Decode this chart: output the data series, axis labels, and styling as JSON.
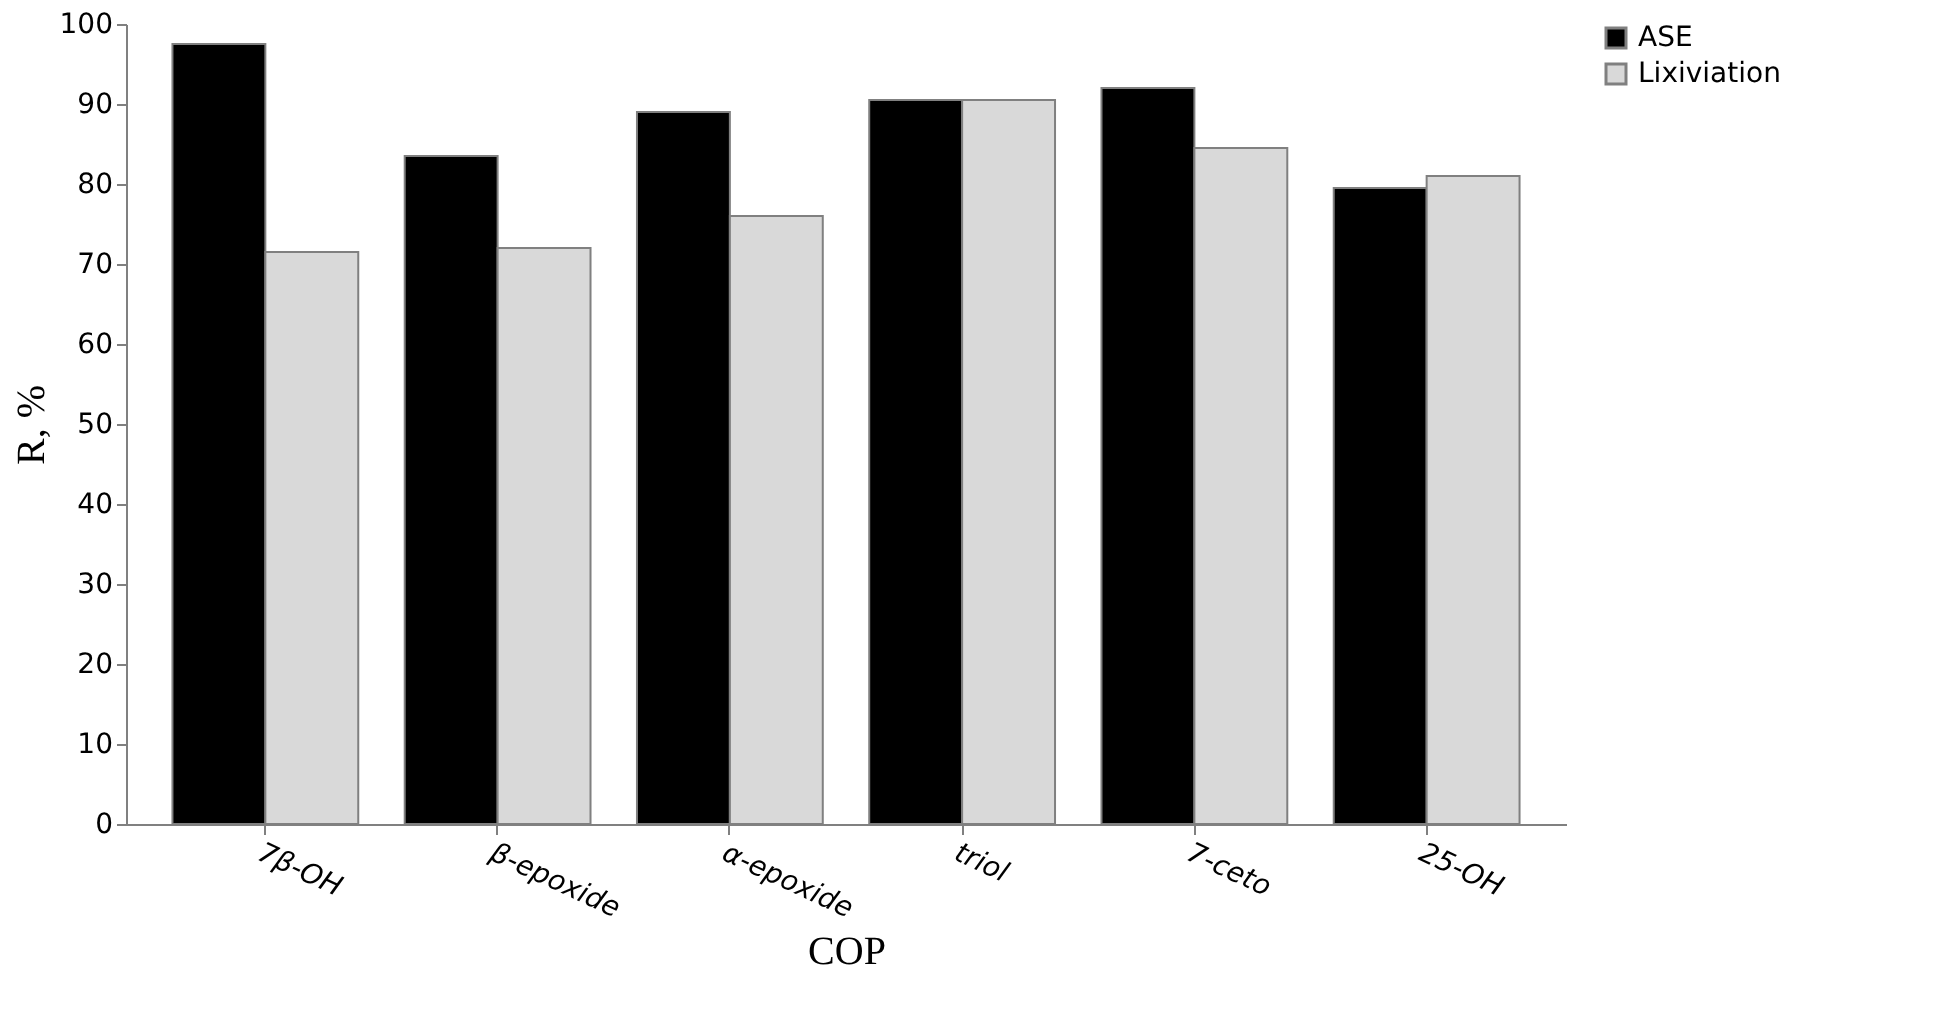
{
  "chart_data": {
    "type": "bar",
    "xlabel": "COP",
    "ylabel": "R, %",
    "categories": [
      "7β-OH",
      "β-epoxide",
      "α-epoxide",
      "triol",
      "7-ceto",
      "25-OH"
    ],
    "series": [
      {
        "name": "ASE",
        "color": "#000000",
        "values": [
          97.5,
          83.5,
          89,
          90.5,
          92,
          79.5
        ]
      },
      {
        "name": "Lixiviation",
        "color": "#d9d9d9",
        "values": [
          71.5,
          72,
          76,
          90.5,
          84.5,
          81
        ]
      }
    ],
    "ylim": [
      0,
      100
    ],
    "yticks": [
      0,
      10,
      20,
      30,
      40,
      50,
      60,
      70,
      80,
      90,
      100
    ],
    "grid": false,
    "legend": "right"
  }
}
